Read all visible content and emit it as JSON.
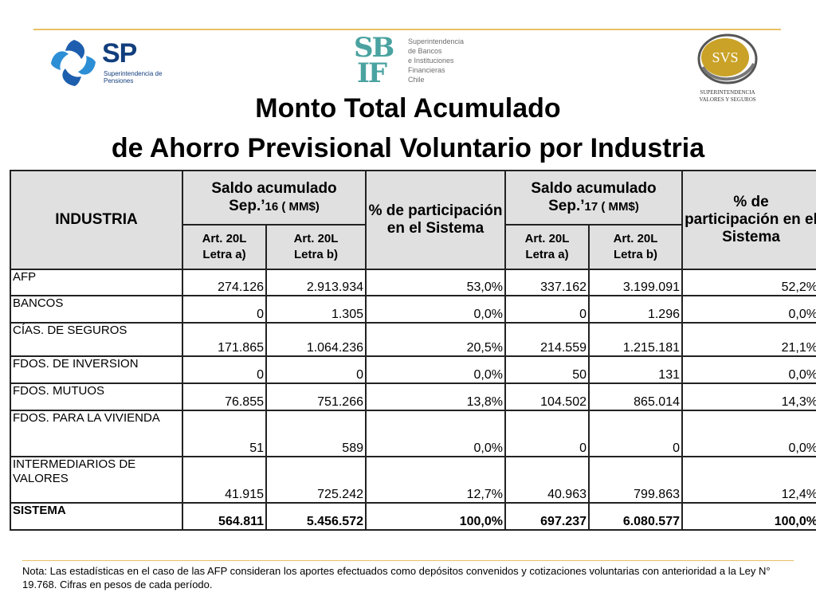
{
  "logos": {
    "sp": {
      "letters": "SP",
      "line1": "Superintendencia de",
      "line2": "Pensiones"
    },
    "sbif": {
      "mark_top": "SB",
      "mark_bottom": "IF",
      "lines": [
        "Superintendencia",
        "de Bancos",
        "e Instituciones",
        "Financieras",
        "Chile"
      ]
    },
    "svs": {
      "letters": "SVS",
      "line1": "SUPERINTENDENCIA",
      "line2": "VALORES Y SEGUROS"
    }
  },
  "title": {
    "line1": "Monto Total Acumulado",
    "line2": "de Ahorro Previsional Voluntario por Industria"
  },
  "table": {
    "header": {
      "industria": "INDUSTRIA",
      "saldo16_line1": "Saldo acumulado",
      "saldo16_sep": "Sep.’",
      "saldo16_year": "16 ( MM$)",
      "pct16": "% de participación en el Sistema",
      "saldo17_line1": "Saldo acumulado",
      "saldo17_sep": "Sep.’",
      "saldo17_year": "17 ( MM$)",
      "pct17": "% de participación en el Sistema",
      "art_a_line1": "Art. 20L",
      "art_a_line2": "Letra a)",
      "art_b_line1": "Art. 20L",
      "art_b_line2": "Letra b)"
    },
    "rows": [
      {
        "name": "AFP",
        "a16": "274.126",
        "b16": "2.913.934",
        "p16": "53,0%",
        "a17": "337.162",
        "b17": "3.199.091",
        "p17": "52,2%"
      },
      {
        "name": "BANCOS",
        "a16": "0",
        "b16": "1.305",
        "p16": "0,0%",
        "a17": "0",
        "b17": "1.296",
        "p17": "0,0%"
      },
      {
        "name": "CÍAS. DE SEGUROS",
        "a16": "171.865",
        "b16": "1.064.236",
        "p16": "20,5%",
        "a17": "214.559",
        "b17": "1.215.181",
        "p17": "21,1%"
      },
      {
        "name": "FDOS. DE INVERSION",
        "a16": "0",
        "b16": "0",
        "p16": "0,0%",
        "a17": "50",
        "b17": "131",
        "p17": "0,0%"
      },
      {
        "name": "FDOS. MUTUOS",
        "a16": "76.855",
        "b16": "751.266",
        "p16": "13,8%",
        "a17": "104.502",
        "b17": "865.014",
        "p17": "14,3%"
      },
      {
        "name": "FDOS. PARA LA VIVIENDA",
        "a16": "51",
        "b16": "589",
        "p16": "0,0%",
        "a17": "0",
        "b17": "0",
        "p17": "0,0%"
      },
      {
        "name": "INTERMEDIARIOS DE VALORES",
        "a16": "41.915",
        "b16": "725.242",
        "p16": "12,7%",
        "a17": "40.963",
        "b17": "799.863",
        "p17": "12,4%"
      }
    ],
    "total": {
      "name": "SISTEMA",
      "a16": "564.811",
      "b16": "5.456.572",
      "p16": "100,0%",
      "a17": "697.237",
      "b17": "6.080.577",
      "p17": "100,0%"
    }
  },
  "note": "Nota: Las estadísticas en el caso de las AFP consideran los aportes efectuados como depósitos convenidos y cotizaciones voluntarias con anterioridad a la Ley N° 19.768. Cifras en pesos de cada período."
}
